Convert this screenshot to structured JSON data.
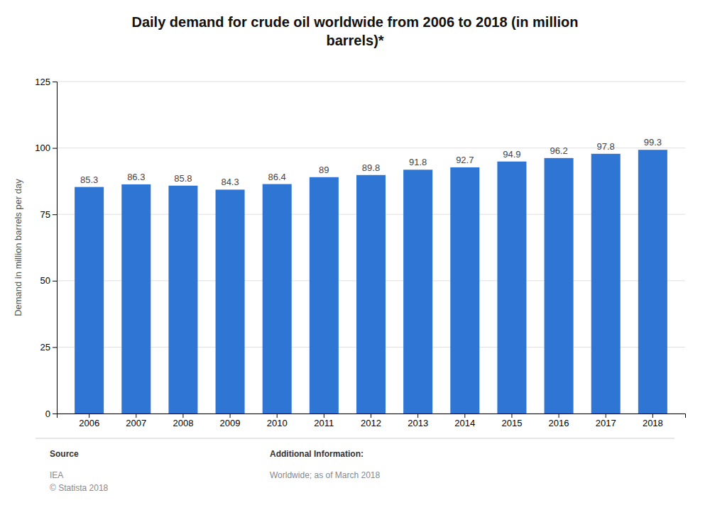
{
  "chart_data": {
    "type": "bar",
    "title": "Daily demand for crude oil worldwide from 2006 to 2018 (in million\nbarrels)*",
    "ylabel": "Demand in million barrels per day",
    "categories": [
      "2006",
      "2007",
      "2008",
      "2009",
      "2010",
      "2011",
      "2012",
      "2013",
      "2014",
      "2015",
      "2016",
      "2017",
      "2018"
    ],
    "values": [
      85.3,
      86.3,
      85.8,
      84.3,
      86.4,
      89.0,
      89.8,
      91.8,
      92.7,
      94.9,
      96.2,
      97.8,
      99.3
    ],
    "color": "#2e75d4",
    "ylim": [
      0,
      125
    ],
    "yticks": [
      0,
      25,
      50,
      75,
      100,
      125
    ],
    "grid": true,
    "data_labels": true,
    "annotations": [
      "Source",
      "IEA",
      "© Statista 2018",
      "Additional Information:",
      "Worldwide; as of March 2018"
    ]
  }
}
